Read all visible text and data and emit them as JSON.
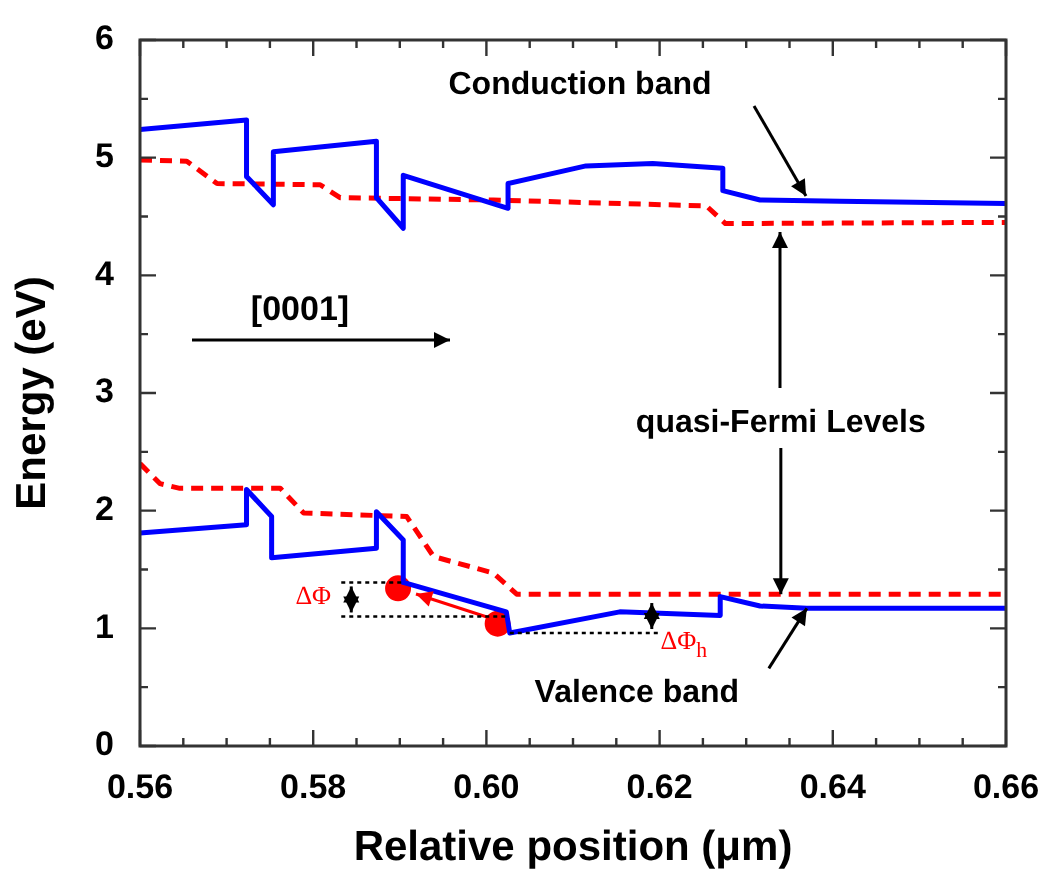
{
  "chart_data": {
    "type": "line",
    "xlabel": "Relative position (μm)",
    "ylabel": "Energy (eV)",
    "xlim": [
      0.56,
      0.66
    ],
    "ylim": [
      0,
      6
    ],
    "grid": false,
    "legend": false,
    "line_style": "solid",
    "marker": "none",
    "xticks": [
      {
        "value": 0.56,
        "label": "0.56"
      },
      {
        "value": 0.565,
        "label": null
      },
      {
        "value": 0.57,
        "label": null
      },
      {
        "value": 0.575,
        "label": null
      },
      {
        "value": 0.58,
        "label": "0.58"
      },
      {
        "value": 0.585,
        "label": null
      },
      {
        "value": 0.59,
        "label": null
      },
      {
        "value": 0.595,
        "label": null
      },
      {
        "value": 0.6,
        "label": "0.60"
      },
      {
        "value": 0.605,
        "label": null
      },
      {
        "value": 0.61,
        "label": null
      },
      {
        "value": 0.615,
        "label": null
      },
      {
        "value": 0.62,
        "label": "0.62"
      },
      {
        "value": 0.625,
        "label": null
      },
      {
        "value": 0.63,
        "label": null
      },
      {
        "value": 0.635,
        "label": null
      },
      {
        "value": 0.64,
        "label": "0.64"
      },
      {
        "value": 0.645,
        "label": null
      },
      {
        "value": 0.65,
        "label": null
      },
      {
        "value": 0.655,
        "label": null
      },
      {
        "value": 0.66,
        "label": "0.66"
      }
    ],
    "yticks": [
      0,
      {
        "value": 0.5,
        "label": null
      },
      1,
      {
        "value": 1.5,
        "label": null
      },
      2,
      {
        "value": 2.5,
        "label": null
      },
      3,
      {
        "value": 3.5,
        "label": null
      },
      4,
      {
        "value": 4.5,
        "label": null
      },
      5,
      {
        "value": 5.5,
        "label": null
      },
      6
    ],
    "annotations": [
      "Conduction band",
      "[0001]",
      {
        "text": "quasi-Fermi Levels",
        "x": 0.634,
        "y": 1.29
      },
      {
        "text": "Valence band",
        "x": 0.637,
        "y": 1.17
      },
      {
        "text": "ΔΦ",
        "x": 0.5904,
        "y": 1.39
      },
      {
        "text": "ΔΦ$_{h}$",
        "x": 0.6027,
        "y": 0.96
      }
    ],
    "series": [
      {
        "color": "#0000ff",
        "x": [
          0.56,
          0.5723,
          0.5723,
          0.5754,
          0.5754,
          0.5873,
          0.5873,
          0.5904,
          0.5904,
          0.6025,
          0.6025,
          0.6115,
          0.6192,
          0.6273,
          0.6273,
          0.6316,
          0.6408,
          0.66
        ],
        "values": [
          5.24,
          5.32,
          4.84,
          4.6,
          5.05,
          5.14,
          4.66,
          4.4,
          4.85,
          4.57,
          4.78,
          4.93,
          4.95,
          4.91,
          4.72,
          4.64,
          4.63,
          4.61
        ]
      },
      {
        "color": "#ff0000",
        "line_style": "dashed",
        "x": [
          0.56,
          0.5654,
          0.5689,
          0.5808,
          0.5831,
          0.6008,
          0.6254,
          0.6276,
          0.66
        ],
        "values": [
          4.98,
          4.97,
          4.78,
          4.77,
          4.66,
          4.64,
          4.59,
          4.44,
          4.45
        ]
      },
      {
        "color": "#0000ff",
        "x": [
          0.56,
          0.5723,
          0.5723,
          0.5752,
          0.5752,
          0.5873,
          0.5873,
          0.5904,
          0.5904,
          0.6023,
          0.6027,
          0.6154,
          0.627,
          0.627,
          0.6316,
          0.637,
          0.66
        ],
        "values": [
          1.81,
          1.88,
          2.18,
          1.95,
          1.6,
          1.68,
          1.99,
          1.75,
          1.39,
          1.14,
          0.96,
          1.14,
          1.11,
          1.27,
          1.19,
          1.17,
          1.17
        ]
      },
      {
        "color": "#ff0000",
        "line_style": "dashed",
        "x": [
          0.56,
          0.5623,
          0.5646,
          0.5762,
          0.5789,
          0.5908,
          0.5939,
          0.6008,
          0.6035,
          0.66
        ],
        "values": [
          2.4,
          2.23,
          2.19,
          2.19,
          1.98,
          1.95,
          1.61,
          1.47,
          1.29,
          1.29
        ]
      },
      {
        "type": "scatter",
        "marker": "circle",
        "color": "#ff0000",
        "x": [
          0.5898,
          0.6013
        ],
        "values": [
          1.34,
          1.04
        ]
      }
    ]
  }
}
